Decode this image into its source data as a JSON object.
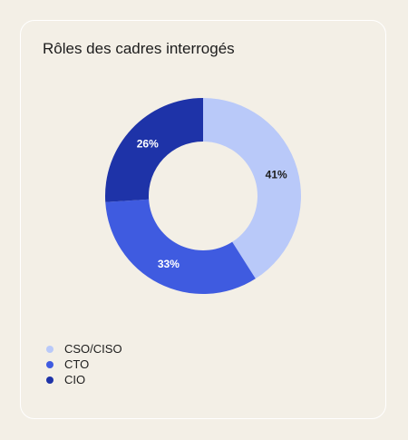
{
  "title": "Rôles des cadres interrogés",
  "chart_data": {
    "type": "pie",
    "donut": true,
    "title": "Rôles des cadres interrogés",
    "categories": [
      "CSO/CISO",
      "CTO",
      "CIO"
    ],
    "values": [
      41,
      33,
      26
    ],
    "labels": [
      "41%",
      "33%",
      "26%"
    ],
    "colors": [
      "#b9c9f9",
      "#3f5be0",
      "#1e33a8"
    ],
    "label_colors": [
      "#1c1c1c",
      "#ffffff",
      "#ffffff"
    ],
    "legend_position": "bottom-left",
    "start": "top"
  },
  "legend": [
    {
      "label": "CSO/CISO",
      "color": "#b9c9f9"
    },
    {
      "label": "CTO",
      "color": "#3f5be0"
    },
    {
      "label": "CIO",
      "color": "#1e33a8"
    }
  ]
}
